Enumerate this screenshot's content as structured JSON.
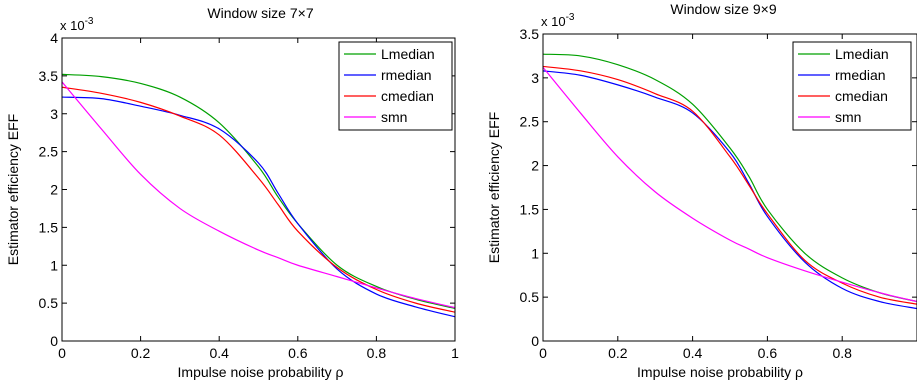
{
  "chart_data": [
    {
      "type": "line",
      "title": "Window size 7×7",
      "xlabel": "Impulse noise probability ρ",
      "ylabel": "Estimator efficiency EFF",
      "y_exponent_label": "x 10",
      "y_exponent": "-3",
      "xlim": [
        0,
        1
      ],
      "ylim": [
        0,
        4
      ],
      "xticks": [
        0,
        0.2,
        0.4,
        0.6,
        0.8,
        1
      ],
      "xtick_labels": [
        "0",
        "0.2",
        "0.4",
        "0.6",
        "0.8",
        "1"
      ],
      "yticks": [
        0,
        0.5,
        1,
        1.5,
        2,
        2.5,
        3,
        3.5,
        4
      ],
      "ytick_labels": [
        "0",
        "0.5",
        "1",
        "1.5",
        "2",
        "2.5",
        "3",
        "3.5",
        "4"
      ],
      "grid": false,
      "legend_position": "top-right",
      "x": [
        0,
        0.1,
        0.2,
        0.3,
        0.4,
        0.5,
        0.55,
        0.6,
        0.7,
        0.8,
        0.9,
        1.0
      ],
      "series": [
        {
          "name": "Lmedian",
          "color": "#00a000",
          "values": [
            3.52,
            3.49,
            3.4,
            3.22,
            2.88,
            2.3,
            1.9,
            1.55,
            1.0,
            0.72,
            0.55,
            0.43
          ]
        },
        {
          "name": "rmedian",
          "color": "#0000ff",
          "values": [
            3.22,
            3.2,
            3.1,
            2.98,
            2.8,
            2.35,
            1.95,
            1.55,
            0.95,
            0.62,
            0.45,
            0.32
          ]
        },
        {
          "name": "cmedian",
          "color": "#ff0000",
          "values": [
            3.35,
            3.27,
            3.15,
            2.97,
            2.72,
            2.15,
            1.8,
            1.45,
            0.97,
            0.68,
            0.5,
            0.38
          ]
        },
        {
          "name": "smn",
          "color": "#ff00ff",
          "values": [
            3.42,
            2.8,
            2.2,
            1.75,
            1.45,
            1.2,
            1.1,
            1.0,
            0.85,
            0.7,
            0.56,
            0.44
          ]
        }
      ]
    },
    {
      "type": "line",
      "title": "Window size 9×9",
      "xlabel": "Impulse noise probability ρ",
      "ylabel": "Estimator efficiency EFF",
      "y_exponent_label": "x 10",
      "y_exponent": "-3",
      "xlim": [
        0,
        1
      ],
      "ylim": [
        0,
        3.5
      ],
      "xticks": [
        0,
        0.2,
        0.4,
        0.6,
        0.8
      ],
      "xtick_labels": [
        "0",
        "0.2",
        "0.4",
        "0.6",
        "0.8"
      ],
      "yticks": [
        0,
        0.5,
        1,
        1.5,
        2,
        2.5,
        3,
        3.5
      ],
      "ytick_labels": [
        "0",
        "0.5",
        "1",
        "1.5",
        "2",
        "2.5",
        "3",
        "3.5"
      ],
      "grid": false,
      "legend_position": "top-right",
      "x": [
        0,
        0.1,
        0.2,
        0.3,
        0.4,
        0.5,
        0.55,
        0.6,
        0.7,
        0.8,
        0.9,
        1.0
      ],
      "series": [
        {
          "name": "Lmedian",
          "color": "#00a000",
          "values": [
            3.27,
            3.25,
            3.15,
            2.98,
            2.7,
            2.2,
            1.88,
            1.5,
            1.0,
            0.72,
            0.55,
            0.45
          ]
        },
        {
          "name": "rmedian",
          "color": "#0000ff",
          "values": [
            3.08,
            3.03,
            2.92,
            2.78,
            2.6,
            2.15,
            1.8,
            1.42,
            0.9,
            0.6,
            0.45,
            0.37
          ]
        },
        {
          "name": "cmedian",
          "color": "#ff0000",
          "values": [
            3.13,
            3.08,
            2.98,
            2.82,
            2.62,
            2.1,
            1.78,
            1.45,
            0.92,
            0.66,
            0.5,
            0.42
          ]
        },
        {
          "name": "smn",
          "color": "#ff00ff",
          "values": [
            3.12,
            2.6,
            2.1,
            1.7,
            1.4,
            1.15,
            1.05,
            0.95,
            0.8,
            0.67,
            0.55,
            0.45
          ]
        }
      ]
    }
  ]
}
